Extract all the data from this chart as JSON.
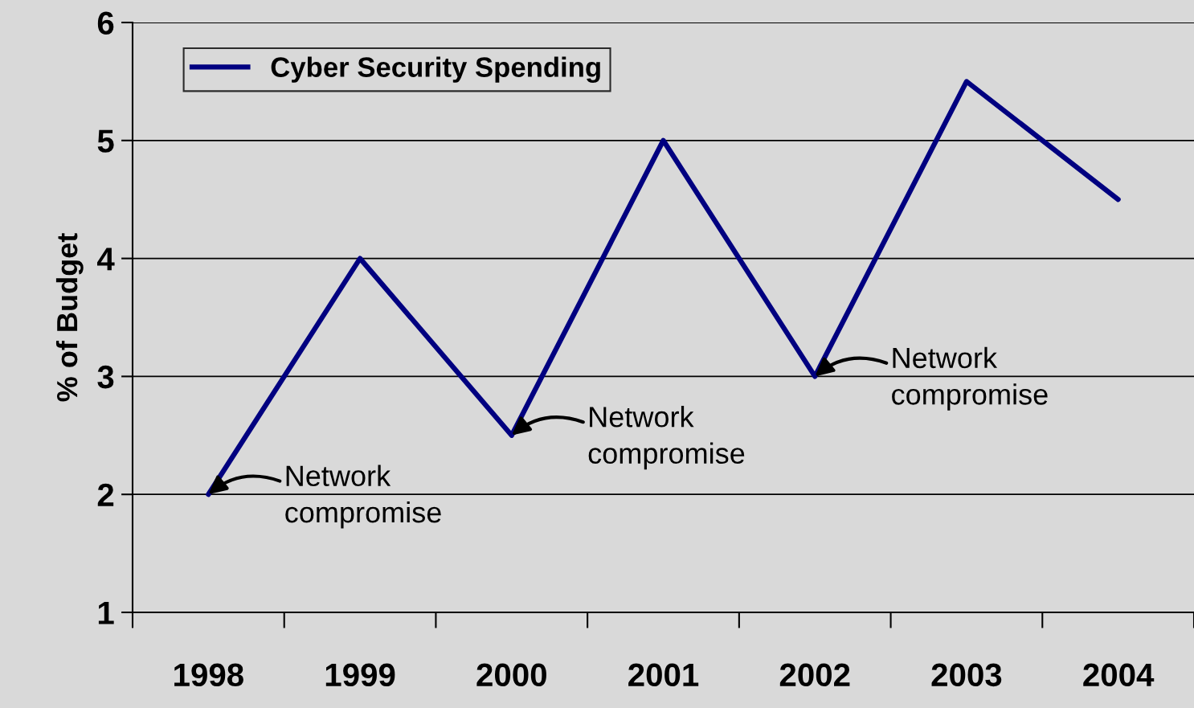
{
  "chart_data": {
    "type": "line",
    "ylabel": "% of Budget",
    "categories": [
      "1998",
      "1999",
      "2000",
      "2001",
      "2002",
      "2003",
      "2004"
    ],
    "series": [
      {
        "name": "Cyber Security Spending",
        "color": "#000080",
        "values": [
          2,
          4,
          2.5,
          5,
          3,
          5.5,
          4.5
        ]
      }
    ],
    "ylim": [
      1,
      6
    ],
    "yticks": [
      1,
      2,
      3,
      4,
      5,
      6
    ],
    "grid": "y",
    "legend": "top left",
    "marker": "none",
    "line_style": "solid",
    "annotations": [
      {
        "text": "Network\ncompromise",
        "x": "1998",
        "y": 2
      },
      {
        "text": "Network\ncompromise",
        "x": "2000",
        "y": 2.5
      },
      {
        "text": "Network\ncompromise",
        "x": "2002",
        "y": 3
      }
    ]
  }
}
